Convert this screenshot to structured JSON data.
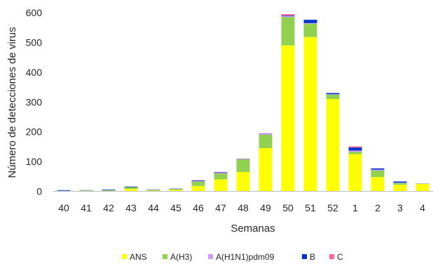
{
  "chart_data": {
    "type": "bar",
    "stacked": true,
    "xlabel": "Semanas",
    "ylabel": "Número de detecciones de virus",
    "ylim": [
      0,
      600
    ],
    "yticks": [
      0,
      100,
      200,
      300,
      400,
      500,
      600
    ],
    "grid": false,
    "legend_position": "bottom",
    "categories": [
      "40",
      "41",
      "42",
      "43",
      "44",
      "45",
      "46",
      "47",
      "48",
      "49",
      "50",
      "51",
      "52",
      "1",
      "2",
      "3",
      "4"
    ],
    "series": [
      {
        "name": "ANS",
        "color": "#ffff00",
        "values": [
          1,
          2,
          2,
          8,
          3,
          5,
          18,
          40,
          65,
          145,
          490,
          518,
          310,
          125,
          48,
          22,
          25
        ]
      },
      {
        "name": "A(H3)",
        "color": "#92d050",
        "values": [
          1,
          1,
          2,
          6,
          2,
          3,
          15,
          20,
          42,
          45,
          95,
          45,
          15,
          8,
          22,
          6,
          1
        ]
      },
      {
        "name": "A(H1N1)pdm09",
        "color": "#cc99ff",
        "values": [
          0,
          0,
          0,
          0,
          0,
          0,
          2,
          2,
          1,
          3,
          3,
          2,
          1,
          4,
          3,
          1,
          1
        ]
      },
      {
        "name": "B",
        "color": "#0033cc",
        "values": [
          2,
          1,
          2,
          2,
          1,
          1,
          2,
          2,
          1,
          1,
          2,
          11,
          4,
          10,
          4,
          4,
          0
        ]
      },
      {
        "name": "C",
        "color": "#ff6699",
        "values": [
          0,
          0,
          0,
          0,
          0,
          0,
          1,
          1,
          1,
          1,
          5,
          0,
          0,
          4,
          0,
          0,
          0
        ]
      }
    ]
  }
}
